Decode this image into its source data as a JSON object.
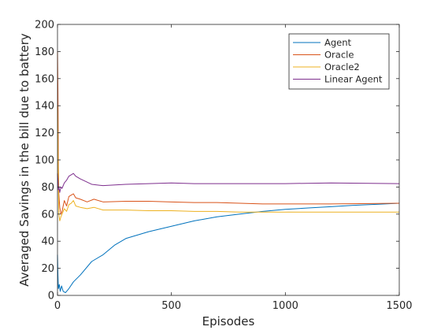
{
  "chart_data": {
    "type": "line",
    "title": "",
    "xlabel": "Episodes",
    "ylabel": "Averaged Savings in the bill due to battery",
    "xlim": [
      0,
      1500
    ],
    "ylim": [
      0,
      200
    ],
    "xticks": [
      0,
      500,
      1000,
      1500
    ],
    "yticks": [
      0,
      20,
      40,
      60,
      80,
      100,
      120,
      140,
      160,
      180,
      200
    ],
    "grid": false,
    "legend_position": "top-right",
    "series": [
      {
        "name": "Agent",
        "color": "#0072BD",
        "x": [
          0,
          2,
          4,
          8,
          12,
          18,
          25,
          35,
          50,
          70,
          100,
          150,
          200,
          250,
          300,
          400,
          500,
          600,
          700,
          800,
          900,
          1000,
          1100,
          1200,
          1300,
          1400,
          1500
        ],
        "y": [
          30,
          15,
          5,
          8,
          3,
          7,
          3,
          2,
          5,
          10,
          15,
          25,
          30,
          37,
          42,
          47,
          51,
          55,
          58,
          60,
          62,
          63.5,
          64.5,
          65.5,
          66.5,
          67.2,
          68
        ]
      },
      {
        "name": "Oracle",
        "color": "#D95319",
        "x": [
          0,
          2,
          4,
          6,
          10,
          15,
          20,
          30,
          40,
          50,
          60,
          70,
          80,
          100,
          130,
          160,
          200,
          300,
          400,
          500,
          600,
          700,
          800,
          900,
          1000,
          1200,
          1500
        ],
        "y": [
          180,
          150,
          95,
          75,
          65,
          60,
          62,
          70,
          66,
          73,
          74,
          75,
          72,
          71,
          69,
          71,
          69,
          69.5,
          69.5,
          69,
          68.5,
          68.5,
          68,
          67.5,
          67.5,
          67.5,
          68
        ]
      },
      {
        "name": "Oracle2",
        "color": "#EDB120",
        "x": [
          0,
          2,
          4,
          6,
          10,
          15,
          20,
          30,
          40,
          50,
          60,
          70,
          80,
          100,
          130,
          160,
          200,
          300,
          400,
          500,
          600,
          700,
          800,
          900,
          1000,
          1200,
          1500
        ],
        "y": [
          140,
          110,
          80,
          60,
          55,
          58,
          60,
          64,
          62,
          67,
          68,
          70,
          66,
          65,
          64,
          65,
          63,
          63,
          62.5,
          62.5,
          62,
          62,
          61.5,
          61.5,
          61.5,
          61.5,
          61.5
        ]
      },
      {
        "name": "Linear Agent",
        "color": "#7E2F8E",
        "x": [
          0,
          2,
          4,
          6,
          10,
          15,
          20,
          30,
          40,
          50,
          60,
          70,
          80,
          100,
          150,
          200,
          300,
          400,
          500,
          600,
          700,
          800,
          900,
          1000,
          1200,
          1500
        ],
        "y": [
          90,
          85,
          78,
          80,
          76,
          80,
          79,
          83,
          85,
          88,
          89,
          90,
          88,
          86,
          82,
          81,
          82,
          82.5,
          83,
          82.5,
          82.5,
          82.5,
          82.5,
          82.5,
          83,
          82.5
        ]
      }
    ]
  }
}
